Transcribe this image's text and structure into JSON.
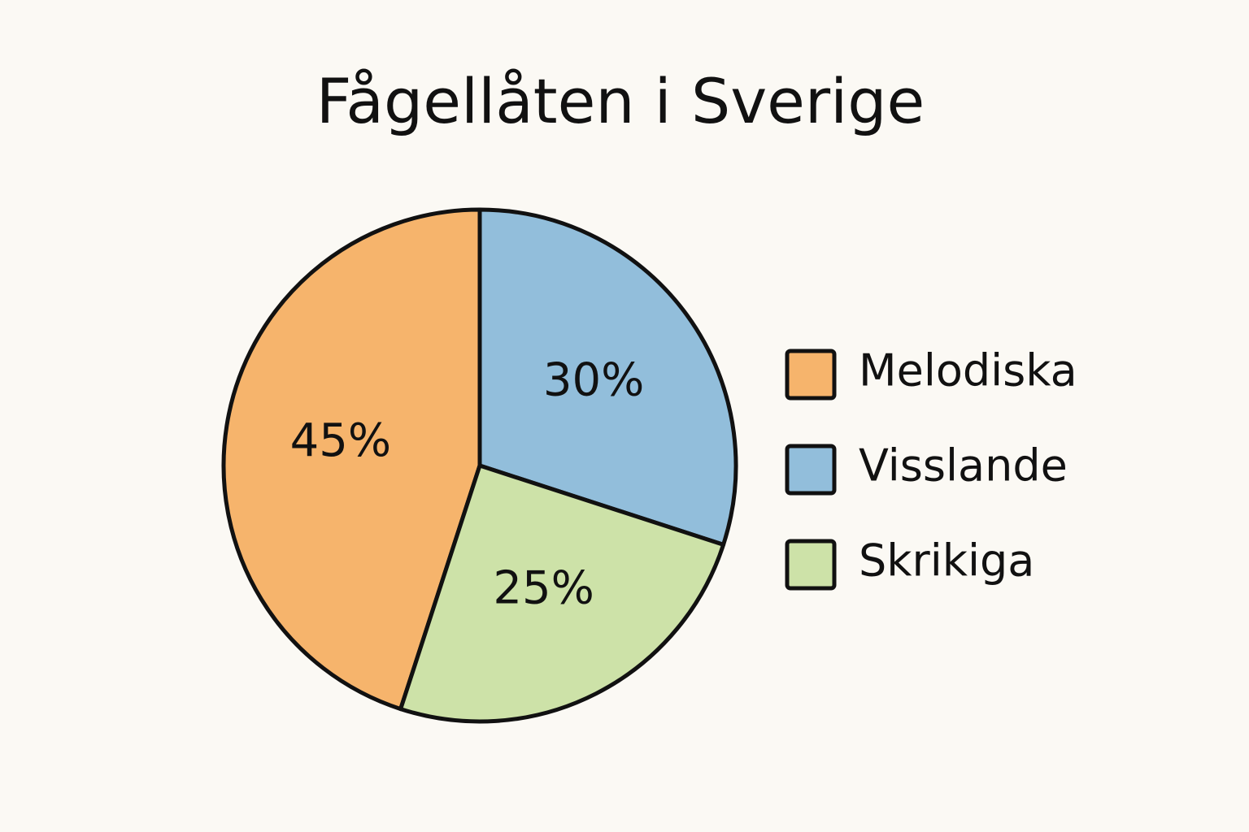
{
  "chart_data": {
    "type": "pie",
    "title": "Fågellåten i Sverige",
    "categories": [
      "Melodiska",
      "Visslande",
      "Skrikiga"
    ],
    "values": [
      45,
      30,
      25
    ],
    "value_labels": [
      "45%",
      "30%",
      "25%"
    ],
    "colors": [
      "#f6b46c",
      "#92bedb",
      "#cde2a8"
    ],
    "legend": "right"
  }
}
